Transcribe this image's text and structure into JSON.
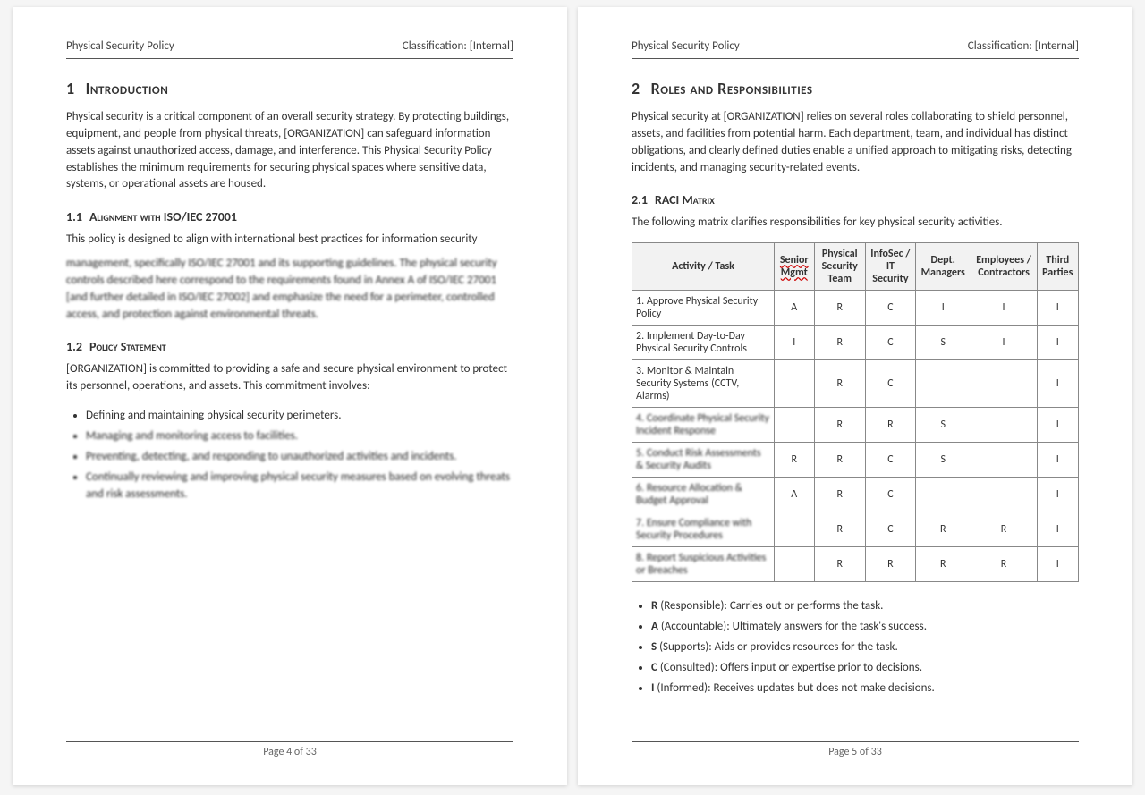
{
  "header": {
    "title": "Physical Security Policy",
    "classification": "Classification: [Internal]"
  },
  "footer": {
    "p4": "Page 4 of 33",
    "p5": "Page 5 of 33"
  },
  "left": {
    "h1_num": "1",
    "h1": "Introduction",
    "intro": "Physical security is a critical component of an overall security strategy. By protecting buildings, equipment, and people from physical threats, [ORGANIZATION] can safeguard information assets against unauthorized access, damage, and interference. This Physical Security Policy establishes the minimum requirements for securing physical spaces where sensitive data, systems, or operational assets are housed.",
    "h11_num": "1.1",
    "h11": "Alignment with ISO/IEC 27001",
    "p11a": "This policy is designed to align with international best practices for information security",
    "p11b": "management, specifically ISO/IEC 27001 and its supporting guidelines. The physical security controls described here correspond to the requirements found in Annex A of ISO/IEC 27001 [and further detailed in ISO/IEC 27002] and emphasize the need for a perimeter, controlled access, and protection against environmental threats.",
    "h12_num": "1.2",
    "h12": "Policy Statement",
    "p12": "[ORGANIZATION] is committed to providing a safe and secure physical environment to protect its personnel, operations, and assets. This commitment involves:",
    "b1": "Defining and maintaining physical security perimeters.",
    "b2": "Managing and monitoring access to facilities.",
    "b3": "Preventing, detecting, and responding to unauthorized activities and incidents.",
    "b4": "Continually reviewing and improving physical security measures based on evolving threats and risk assessments."
  },
  "right": {
    "h1_num": "2",
    "h1": "Roles and Responsibilities",
    "intro": "Physical security at [ORGANIZATION] relies on several roles collaborating to shield personnel, assets, and facilities from potential harm. Each department, team, and individual has distinct obligations, and clearly defined duties enable a unified approach to mitigating risks, detecting incidents, and managing security-related events.",
    "h21_num": "2.1",
    "h21": "RACI Matrix",
    "p21": "The following matrix clarifies responsibilities for key physical security activities.",
    "columns": [
      "Activity / Task",
      "Senior Mgmt",
      "Physical Security Team",
      "InfoSec / IT Security",
      "Dept. Managers",
      "Employees / Contractors",
      "Third Parties"
    ],
    "rows": [
      [
        "1. Approve Physical Security Policy",
        "A",
        "R",
        "C",
        "I",
        "I",
        "I"
      ],
      [
        "2. Implement Day-to-Day Physical Security Controls",
        "I",
        "R",
        "C",
        "S",
        "I",
        "I"
      ],
      [
        "3. Monitor & Maintain Security Systems (CCTV, Alarms)",
        "",
        "R",
        "C",
        "",
        "",
        "I"
      ],
      [
        "4. Coordinate Physical Security Incident Response",
        "",
        "R",
        "R",
        "S",
        "",
        "I"
      ],
      [
        "5. Conduct Risk Assessments & Security Audits",
        "R",
        "R",
        "C",
        "S",
        "",
        "I"
      ],
      [
        "6. Resource Allocation & Budget Approval",
        "A",
        "R",
        "C",
        "",
        "",
        "I"
      ],
      [
        "7. Ensure Compliance with Security Procedures",
        "",
        "R",
        "C",
        "R",
        "R",
        "I"
      ],
      [
        "8. Report Suspicious Activities or Breaches",
        "",
        "R",
        "R",
        "R",
        "R",
        "I"
      ]
    ],
    "legend": [
      {
        "k": "R",
        "t": " (Responsible): Carries out or performs the task."
      },
      {
        "k": "A",
        "t": " (Accountable): Ultimately answers for the task's success."
      },
      {
        "k": "S",
        "t": " (Supports): Aids or provides resources for the task."
      },
      {
        "k": "C",
        "t": " (Consulted): Offers input or expertise prior to decisions."
      },
      {
        "k": "I",
        "t": " (Informed): Receives updates but does not make decisions."
      }
    ]
  }
}
